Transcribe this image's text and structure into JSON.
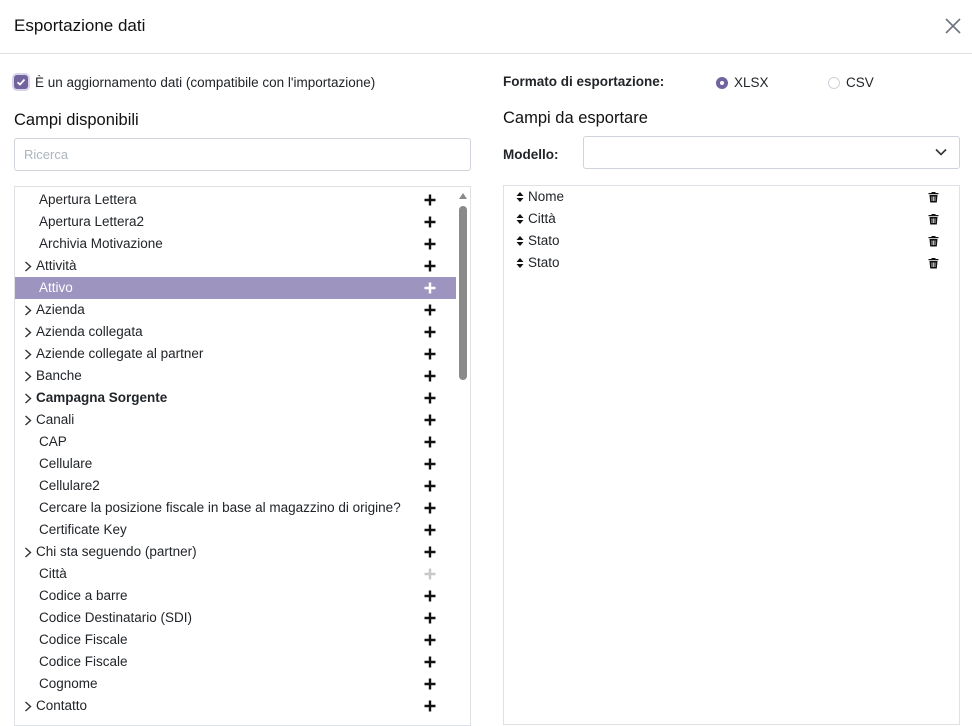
{
  "dialog": {
    "title": "Esportazione dati"
  },
  "left": {
    "update_checkbox_label": "È un aggiornamento dati (compatibile con l'importazione)",
    "update_checked": true,
    "heading": "Campi disponibili",
    "search_placeholder": "Ricerca",
    "fields": [
      {
        "label": "Apertura Lettera",
        "expandable": false
      },
      {
        "label": "Apertura Lettera2",
        "expandable": false
      },
      {
        "label": "Archivia Motivazione",
        "expandable": false
      },
      {
        "label": "Attività",
        "expandable": true
      },
      {
        "label": "Attivo",
        "expandable": false,
        "selected": true
      },
      {
        "label": "Azienda",
        "expandable": true
      },
      {
        "label": "Azienda collegata",
        "expandable": true
      },
      {
        "label": "Aziende collegate al partner",
        "expandable": true
      },
      {
        "label": "Banche",
        "expandable": true
      },
      {
        "label": "Campagna Sorgente",
        "expandable": true,
        "bold": true
      },
      {
        "label": "Canali",
        "expandable": true
      },
      {
        "label": "CAP",
        "expandable": false
      },
      {
        "label": "Cellulare",
        "expandable": false
      },
      {
        "label": "Cellulare2",
        "expandable": false
      },
      {
        "label": "Cercare la posizione fiscale in base al magazzino di origine?",
        "expandable": false
      },
      {
        "label": "Certificate Key",
        "expandable": false
      },
      {
        "label": "Chi sta seguendo (partner)",
        "expandable": true
      },
      {
        "label": "Città",
        "expandable": false,
        "added": true
      },
      {
        "label": "Codice a barre",
        "expandable": false
      },
      {
        "label": "Codice Destinatario (SDI)",
        "expandable": false
      },
      {
        "label": "Codice Fiscale",
        "expandable": false
      },
      {
        "label": "Codice Fiscale",
        "expandable": false
      },
      {
        "label": "Cognome",
        "expandable": false
      },
      {
        "label": "Contatto",
        "expandable": true
      }
    ]
  },
  "right": {
    "format_label": "Formato di esportazione:",
    "formats": [
      {
        "label": "XLSX",
        "selected": true
      },
      {
        "label": "CSV",
        "selected": false
      }
    ],
    "heading": "Campi da esportare",
    "template_label": "Modello:",
    "template_value": "",
    "export_fields": [
      "Nome",
      "Città",
      "Stato",
      "Stato"
    ]
  },
  "colors": {
    "accent": "#71639e",
    "selected_row": "#9e94c0"
  },
  "icons": {
    "close": "close-icon",
    "checkbox": "check-icon",
    "expand": "chevron-right-icon",
    "add": "plus-icon",
    "dropdown": "chevron-down-icon",
    "reorder": "sort-handle-icon",
    "remove": "trash-icon"
  }
}
